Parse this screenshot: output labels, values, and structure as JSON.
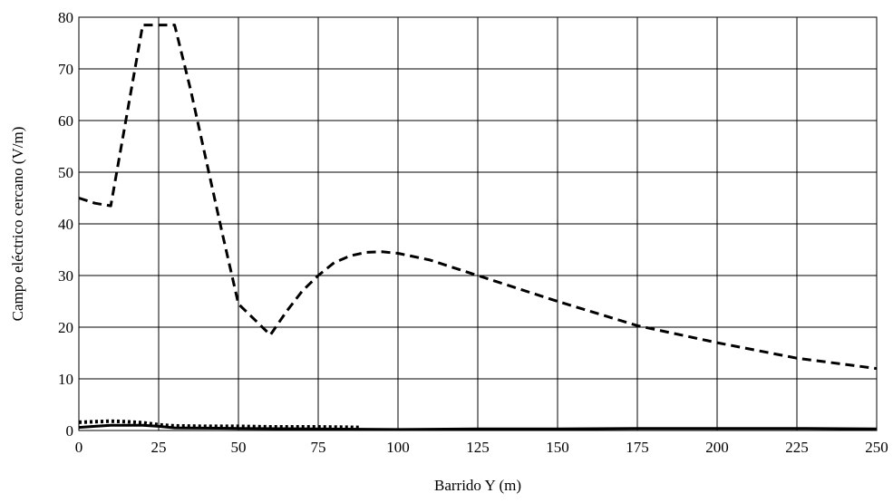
{
  "chart_data": {
    "type": "line",
    "title": "",
    "xlabel": "Barrido Y (m)",
    "ylabel": "Campo eléctrico cercano (V/m)",
    "xlim": [
      0,
      250
    ],
    "ylim": [
      0,
      80
    ],
    "x_ticks": [
      "0",
      "25",
      "50",
      "75",
      "100",
      "125",
      "150",
      "175",
      "200",
      "225",
      "250"
    ],
    "y_ticks": [
      "0",
      "10",
      "20",
      "30",
      "40",
      "50",
      "60",
      "70",
      "80"
    ],
    "grid": true,
    "legend": "none",
    "series": [
      {
        "style": "dashed",
        "color": "#000000",
        "points": [
          [
            0,
            45
          ],
          [
            5,
            44
          ],
          [
            10,
            43.5
          ],
          [
            15,
            61
          ],
          [
            20,
            78.5
          ],
          [
            25,
            78.5
          ],
          [
            30,
            78.5
          ],
          [
            35,
            66
          ],
          [
            40,
            52
          ],
          [
            45,
            38
          ],
          [
            50,
            24.5
          ],
          [
            55,
            21.5
          ],
          [
            60,
            18.5
          ],
          [
            65,
            23
          ],
          [
            70,
            27
          ],
          [
            75,
            30
          ],
          [
            80,
            32.5
          ],
          [
            85,
            33.8
          ],
          [
            90,
            34.5
          ],
          [
            95,
            34.6
          ],
          [
            100,
            34.3
          ],
          [
            110,
            33
          ],
          [
            125,
            30
          ],
          [
            150,
            25
          ],
          [
            175,
            20.3
          ],
          [
            200,
            17
          ],
          [
            225,
            14
          ],
          [
            250,
            12
          ]
        ]
      },
      {
        "style": "dotted",
        "color": "#000000",
        "points": [
          [
            0,
            1.6
          ],
          [
            5,
            1.7
          ],
          [
            10,
            1.8
          ],
          [
            15,
            1.7
          ],
          [
            20,
            1.5
          ],
          [
            25,
            1.1
          ],
          [
            30,
            0.9
          ],
          [
            40,
            0.8
          ],
          [
            50,
            0.8
          ],
          [
            60,
            0.7
          ],
          [
            75,
            0.7
          ],
          [
            88,
            0.6
          ]
        ]
      },
      {
        "style": "solid",
        "color": "#000000",
        "points": [
          [
            0,
            0.6
          ],
          [
            5,
            0.8
          ],
          [
            10,
            1
          ],
          [
            15,
            1
          ],
          [
            20,
            1
          ],
          [
            25,
            0.8
          ],
          [
            30,
            0.5
          ],
          [
            50,
            0.4
          ],
          [
            75,
            0.3
          ],
          [
            100,
            0.2
          ],
          [
            125,
            0.3
          ],
          [
            150,
            0.3
          ],
          [
            175,
            0.4
          ],
          [
            200,
            0.4
          ],
          [
            225,
            0.4
          ],
          [
            250,
            0.3
          ]
        ]
      }
    ]
  }
}
